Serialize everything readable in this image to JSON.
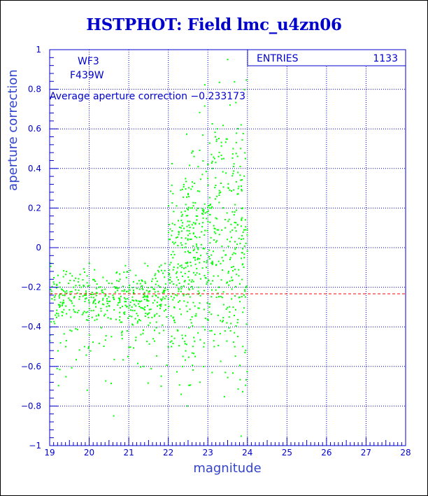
{
  "chart_data": {
    "type": "scatter",
    "title": "HSTPHOT: Field lmc_u4zn06",
    "xlabel": "magnitude",
    "ylabel": "aperture correction",
    "xlim": [
      19,
      28
    ],
    "ylim": [
      -1,
      1
    ],
    "x_ticks": [
      19,
      20,
      21,
      22,
      23,
      24,
      25,
      26,
      27,
      28
    ],
    "y_ticks": [
      -1,
      -0.8,
      -0.6,
      -0.4,
      -0.2,
      0,
      0.2,
      0.4,
      0.6,
      0.8,
      1
    ],
    "x_tick_labels": [
      "19",
      "20",
      "21",
      "22",
      "23",
      "24",
      "25",
      "26",
      "27",
      "28"
    ],
    "y_tick_labels": [
      "−1",
      "−0.8",
      "−0.6",
      "−0.4",
      "−0.2",
      "0",
      "0.2",
      "0.4",
      "0.6",
      "0.8",
      "1"
    ],
    "grid": true,
    "stats_box": {
      "label": "ENTRIES",
      "value": "1133"
    },
    "annotations": {
      "camera": "WF3",
      "filter": "F439W",
      "average_text": "Average aperture correction −0.233173"
    },
    "average_line": {
      "y": -0.233173,
      "color": "#ff0000",
      "style": "dashed"
    },
    "colors": {
      "points": "#00ff00",
      "axes": "#0000cc",
      "grid": "#0000cc",
      "title": "#0000cc"
    },
    "points": [
      [
        19.05,
        -0.22
      ],
      [
        19.12,
        -0.25
      ],
      [
        19.18,
        -0.19
      ],
      [
        19.25,
        -0.3
      ],
      [
        19.3,
        -0.21
      ],
      [
        19.38,
        -0.24
      ],
      [
        19.42,
        -0.47
      ],
      [
        19.48,
        -0.18
      ],
      [
        19.55,
        -0.27
      ],
      [
        19.6,
        -0.2
      ],
      [
        19.66,
        -0.41
      ],
      [
        19.7,
        -0.23
      ],
      [
        19.75,
        -0.26
      ],
      [
        19.8,
        -0.2
      ],
      [
        19.85,
        -0.33
      ],
      [
        19.88,
        -0.5
      ],
      [
        19.92,
        -0.22
      ],
      [
        19.95,
        -0.72
      ],
      [
        20.0,
        -0.19
      ],
      [
        20.05,
        -0.25
      ],
      [
        20.1,
        -0.28
      ],
      [
        20.15,
        -0.17
      ],
      [
        20.2,
        -0.23
      ],
      [
        20.25,
        -0.2
      ],
      [
        20.3,
        -0.32
      ],
      [
        20.35,
        -0.15
      ],
      [
        20.4,
        -0.21
      ],
      [
        20.45,
        -0.27
      ],
      [
        20.5,
        -0.18
      ],
      [
        20.55,
        -0.36
      ],
      [
        20.6,
        -0.24
      ],
      [
        20.62,
        -0.85
      ],
      [
        20.68,
        -0.2
      ],
      [
        20.72,
        -0.29
      ],
      [
        20.78,
        -0.16
      ],
      [
        20.82,
        -0.43
      ],
      [
        20.88,
        -0.22
      ],
      [
        20.92,
        -0.26
      ],
      [
        20.98,
        -0.55
      ],
      [
        21.02,
        -0.19
      ],
      [
        21.08,
        -0.3
      ],
      [
        21.12,
        -0.23
      ],
      [
        21.18,
        -0.14
      ],
      [
        21.22,
        -0.38
      ],
      [
        21.28,
        -0.21
      ],
      [
        21.32,
        -0.27
      ],
      [
        21.38,
        -0.6
      ],
      [
        21.42,
        -0.18
      ],
      [
        21.48,
        -0.25
      ],
      [
        21.52,
        -0.33
      ],
      [
        21.58,
        -0.2
      ],
      [
        21.62,
        -0.46
      ],
      [
        21.68,
        -0.24
      ],
      [
        21.72,
        -0.17
      ],
      [
        21.78,
        -0.29
      ],
      [
        21.82,
        -0.7
      ],
      [
        21.88,
        -0.22
      ],
      [
        21.92,
        -0.08
      ],
      [
        21.96,
        -0.35
      ],
      [
        22.0,
        -0.26
      ],
      [
        22.05,
        -0.15
      ],
      [
        22.08,
        -0.5
      ],
      [
        22.12,
        -0.02
      ],
      [
        22.15,
        -0.3
      ],
      [
        22.2,
        0.05
      ],
      [
        22.24,
        -0.42
      ],
      [
        22.28,
        -0.18
      ],
      [
        22.32,
        0.1
      ],
      [
        22.36,
        -0.6
      ],
      [
        22.4,
        -0.27
      ],
      [
        22.44,
        0.02
      ],
      [
        22.48,
        -0.8
      ],
      [
        22.52,
        -0.12
      ],
      [
        22.56,
        0.2
      ],
      [
        22.6,
        -0.35
      ],
      [
        22.64,
        -0.05
      ],
      [
        22.68,
        -0.55
      ],
      [
        22.72,
        0.14
      ],
      [
        22.76,
        -0.22
      ],
      [
        22.8,
        -0.68
      ],
      [
        22.84,
        0.08
      ],
      [
        22.88,
        -0.4
      ],
      [
        22.92,
        0.22
      ],
      [
        22.96,
        -0.1
      ],
      [
        23.0,
        0.35
      ],
      [
        23.04,
        -0.3
      ],
      [
        23.08,
        0.05
      ],
      [
        23.12,
        0.4
      ],
      [
        23.16,
        -0.5
      ],
      [
        23.2,
        0.15
      ],
      [
        23.24,
        0.6
      ],
      [
        23.28,
        -0.2
      ],
      [
        23.32,
        0.28
      ],
      [
        23.36,
        -0.05
      ],
      [
        23.4,
        0.45
      ],
      [
        23.44,
        0.1
      ],
      [
        23.48,
        -0.38
      ],
      [
        23.52,
        0.3
      ],
      [
        23.56,
        0.72
      ],
      [
        23.6,
        -0.15
      ],
      [
        23.64,
        0.5
      ],
      [
        23.68,
        0.18
      ],
      [
        23.72,
        0.0
      ],
      [
        23.76,
        0.38
      ],
      [
        23.8,
        -0.25
      ],
      [
        23.84,
        0.62
      ],
      [
        23.88,
        0.2
      ],
      [
        23.92,
        -0.05
      ],
      [
        23.95,
        0.45
      ],
      [
        23.5,
        0.95
      ]
    ],
    "point_density": {
      "groups": [
        {
          "xrange": [
            19.0,
            22.0
          ],
          "center": -0.24,
          "spread": 0.07,
          "count": 420,
          "tail": 0.25
        },
        {
          "xrange": [
            22.0,
            24.0
          ],
          "center": -0.1,
          "spread": 0.28,
          "count": 600,
          "tail": 0.3
        }
      ]
    }
  }
}
